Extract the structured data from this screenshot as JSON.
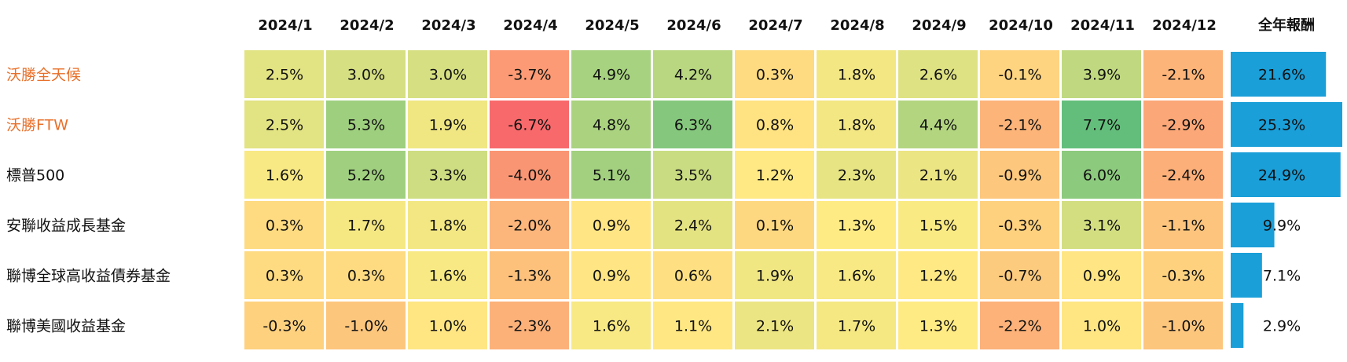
{
  "chart_data": {
    "type": "heatmap",
    "columns": [
      "2024/1",
      "2024/2",
      "2024/3",
      "2024/4",
      "2024/5",
      "2024/6",
      "2024/7",
      "2024/8",
      "2024/9",
      "2024/10",
      "2024/11",
      "2024/12"
    ],
    "rows": [
      "沃勝全天候",
      "沃勝FTW",
      "標普500",
      "安聯收益成長基金",
      "聯博全球高收益債券基金",
      "聯博美國收益基金"
    ],
    "row_colors": [
      "#e8702a",
      "#e8702a",
      "#111111",
      "#111111",
      "#111111",
      "#111111"
    ],
    "values": [
      [
        2.5,
        3.0,
        3.0,
        -3.7,
        4.9,
        4.2,
        0.3,
        1.8,
        2.6,
        -0.1,
        3.9,
        -2.1
      ],
      [
        2.5,
        5.3,
        1.9,
        -6.7,
        4.8,
        6.3,
        0.8,
        1.8,
        4.4,
        -2.1,
        7.7,
        -2.9
      ],
      [
        1.6,
        5.2,
        3.3,
        -4.0,
        5.1,
        3.5,
        1.2,
        2.3,
        2.1,
        -0.9,
        6.0,
        -2.4
      ],
      [
        0.3,
        1.7,
        1.8,
        -2.0,
        0.9,
        2.4,
        0.1,
        1.3,
        1.5,
        -0.3,
        3.1,
        -1.1
      ],
      [
        0.3,
        0.3,
        1.6,
        -1.3,
        0.9,
        0.6,
        1.9,
        1.6,
        1.2,
        -0.7,
        0.9,
        -0.3
      ],
      [
        -0.3,
        -1.0,
        1.0,
        -2.3,
        1.6,
        1.1,
        2.1,
        1.7,
        1.3,
        -2.2,
        1.0,
        -1.0
      ]
    ],
    "value_labels": [
      [
        "2.5%",
        "3.0%",
        "3.0%",
        "-3.7%",
        "4.9%",
        "4.2%",
        "0.3%",
        "1.8%",
        "2.6%",
        "-0.1%",
        "3.9%",
        "-2.1%"
      ],
      [
        "2.5%",
        "5.3%",
        "1.9%",
        "-6.7%",
        "4.8%",
        "6.3%",
        "0.8%",
        "1.8%",
        "4.4%",
        "-2.1%",
        "7.7%",
        "-2.9%"
      ],
      [
        "1.6%",
        "5.2%",
        "3.3%",
        "-4.0%",
        "5.1%",
        "3.5%",
        "1.2%",
        "2.3%",
        "2.1%",
        "-0.9%",
        "6.0%",
        "-2.4%"
      ],
      [
        "0.3%",
        "1.7%",
        "1.8%",
        "-2.0%",
        "0.9%",
        "2.4%",
        "0.1%",
        "1.3%",
        "1.5%",
        "-0.3%",
        "3.1%",
        "-1.1%"
      ],
      [
        "0.3%",
        "0.3%",
        "1.6%",
        "-1.3%",
        "0.9%",
        "0.6%",
        "1.9%",
        "1.6%",
        "1.2%",
        "-0.7%",
        "0.9%",
        "-0.3%"
      ],
      [
        "-0.3%",
        "-1.0%",
        "1.0%",
        "-2.3%",
        "1.6%",
        "1.1%",
        "2.1%",
        "1.7%",
        "1.3%",
        "-2.2%",
        "1.0%",
        "-1.0%"
      ]
    ],
    "colorscale": [
      "#f8696b",
      "#ffeb84",
      "#63be7b"
    ],
    "total_header": "全年報酬",
    "totals": [
      21.6,
      25.3,
      24.9,
      9.9,
      7.1,
      2.9
    ],
    "total_labels": [
      "21.6%",
      "25.3%",
      "24.9%",
      "9.9%",
      "7.1%",
      "2.9%"
    ],
    "total_color": "#1a9fd9"
  }
}
